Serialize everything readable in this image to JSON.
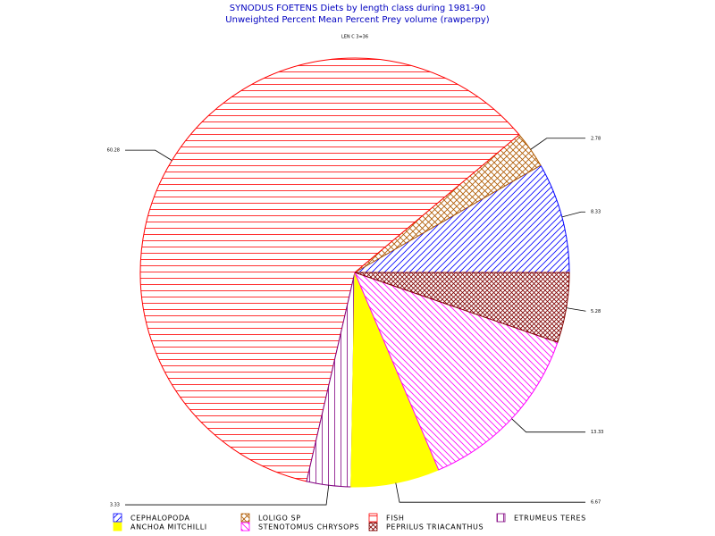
{
  "chart_data": {
    "type": "pie",
    "title": "SYNODUS FOETENS Diets by length class during  1981-90",
    "subtitle": "Unweighted Percent Mean Percent Prey  volume (rawperpy)",
    "note": "LEN C 3=36",
    "categories": [
      "CEPHALOPODA",
      "LOLIGO SP",
      "FISH",
      "ETRUMEUS TERES",
      "ANCHOA MITCHILLI",
      "STENOTOMUS CHRYSOPS",
      "PEPRILUS TRIACANTHUS"
    ],
    "values": [
      8.33,
      2.78,
      60.28,
      3.33,
      6.67,
      13.33,
      5.28
    ],
    "colors": [
      "#0000ff",
      "#b05a00",
      "#ff0000",
      "#800080",
      "#ffff00",
      "#ff00ff",
      "#800000"
    ],
    "patterns": [
      "diagonal-up",
      "crosshatch",
      "horizontal",
      "vertical",
      "solid",
      "diagonal-down",
      "crosshatch-dense"
    ]
  }
}
